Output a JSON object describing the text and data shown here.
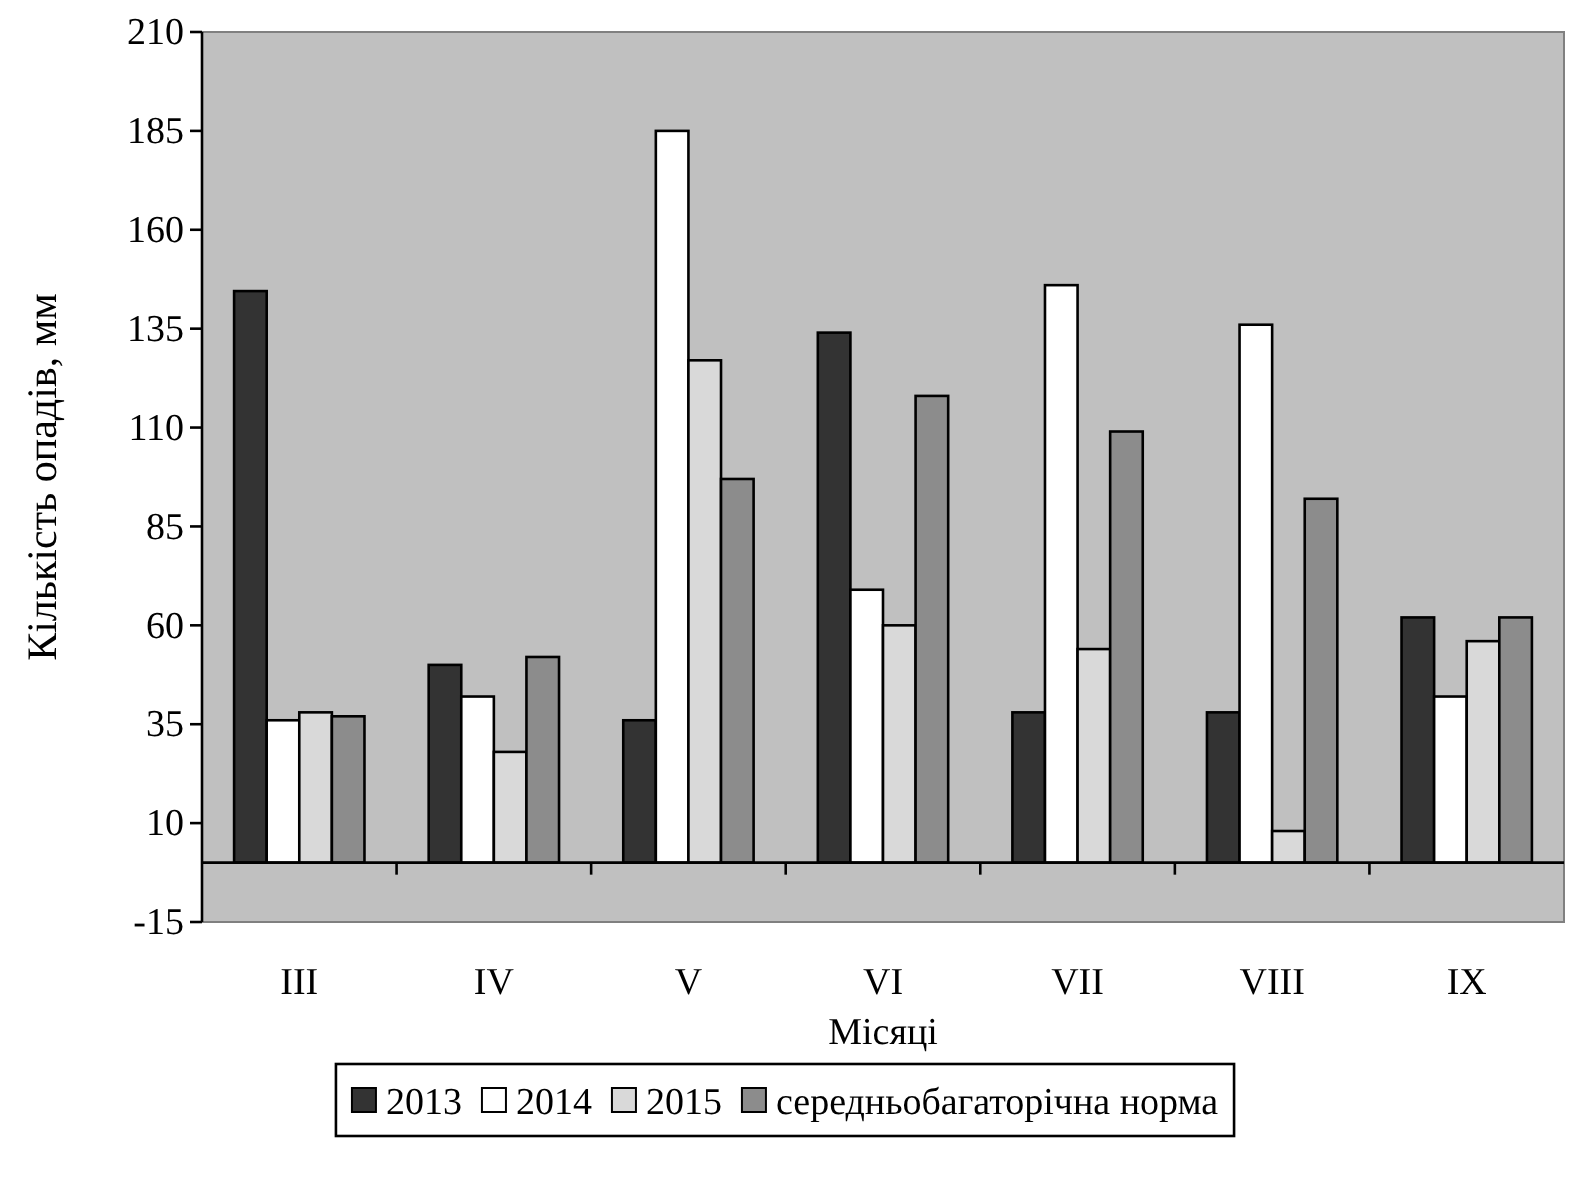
{
  "chart_data": {
    "type": "bar",
    "xlabel": "Місяці",
    "ylabel": "Кількість опадів, мм",
    "categories": [
      "III",
      "IV",
      "V",
      "VI",
      "VII",
      "VIII",
      "IX"
    ],
    "series": [
      {
        "name": "2013",
        "color": "#333333",
        "values": [
          144.5,
          50,
          36,
          134,
          38,
          38,
          62
        ]
      },
      {
        "name": "2014",
        "color": "#ffffff",
        "values": [
          36,
          42,
          185,
          69,
          146,
          136,
          42
        ]
      },
      {
        "name": "2015",
        "color": "#d9d9d9",
        "values": [
          38,
          28,
          127,
          60,
          54,
          8,
          56
        ]
      },
      {
        "name": "середньобагаторічна норма",
        "color": "#8c8c8c",
        "values": [
          37,
          52,
          97,
          118,
          109,
          92,
          62
        ]
      }
    ],
    "ylim": [
      -15,
      210
    ],
    "yticks": [
      -15,
      10,
      35,
      60,
      85,
      110,
      135,
      160,
      185,
      210
    ],
    "grid": false,
    "legend": "bottom"
  }
}
